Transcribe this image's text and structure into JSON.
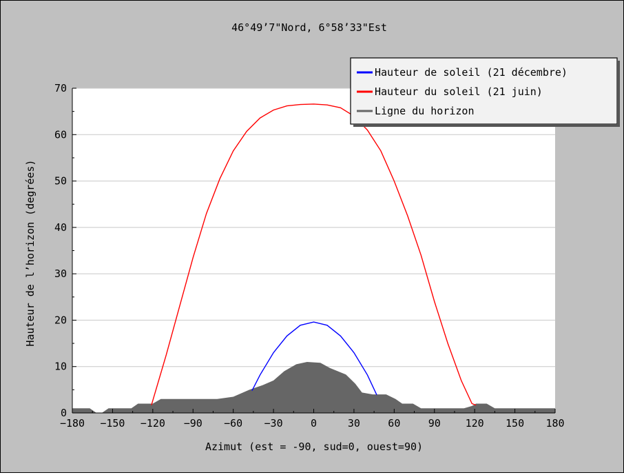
{
  "chart_data": {
    "type": "area",
    "title": "46°49’7\"Nord, 6°58’33\"Est",
    "xlabel": "Azimut (est = -90, sud=0, ouest=90)",
    "ylabel": "Hauteur de l’horizon (degrées)",
    "xlim": [
      -180,
      180
    ],
    "ylim": [
      0,
      70
    ],
    "x_ticks": [
      -180,
      -150,
      -120,
      -90,
      -60,
      -30,
      0,
      30,
      60,
      90,
      120,
      150,
      180
    ],
    "x_tick_labels": [
      "−180",
      "−150",
      "−120",
      "−90",
      "−60",
      "−30",
      "0",
      "30",
      "60",
      "90",
      "120",
      "150",
      "180"
    ],
    "y_ticks": [
      0,
      10,
      20,
      30,
      40,
      50,
      60,
      70
    ],
    "grid": "horizontal",
    "legend_position": "top-right",
    "series": [
      {
        "name": "Hauteur de soleil (21 décembre)",
        "color": "#0000ff",
        "type": "line",
        "points": [
          [
            -46,
            4.8
          ],
          [
            -40,
            8.2
          ],
          [
            -30,
            13.0
          ],
          [
            -20,
            16.6
          ],
          [
            -10,
            18.9
          ],
          [
            0,
            19.6
          ],
          [
            10,
            18.9
          ],
          [
            20,
            16.6
          ],
          [
            30,
            13.0
          ],
          [
            40,
            8.2
          ],
          [
            47,
            3.9
          ]
        ]
      },
      {
        "name": "Hauteur du soleil (21 juin)",
        "color": "#ff0000",
        "type": "line",
        "points": [
          [
            -121,
            1.7
          ],
          [
            -110,
            12.5
          ],
          [
            -100,
            23.0
          ],
          [
            -90,
            33.5
          ],
          [
            -80,
            43.0
          ],
          [
            -70,
            50.5
          ],
          [
            -60,
            56.5
          ],
          [
            -50,
            60.7
          ],
          [
            -40,
            63.6
          ],
          [
            -30,
            65.3
          ],
          [
            -20,
            66.2
          ],
          [
            -10,
            66.5
          ],
          [
            0,
            66.6
          ],
          [
            10,
            66.4
          ],
          [
            20,
            65.8
          ],
          [
            30,
            64.0
          ],
          [
            40,
            61.0
          ],
          [
            50,
            56.5
          ],
          [
            60,
            50.0
          ],
          [
            70,
            42.5
          ],
          [
            80,
            34.0
          ],
          [
            90,
            24.0
          ],
          [
            100,
            15.0
          ],
          [
            110,
            7.0
          ],
          [
            118,
            2.0
          ],
          [
            121,
            1.7
          ]
        ]
      },
      {
        "name": "Ligne du horizon",
        "color": "#666666",
        "type": "area",
        "points": [
          [
            -180,
            1
          ],
          [
            -167,
            1
          ],
          [
            -162,
            0
          ],
          [
            -158,
            0
          ],
          [
            -153,
            1
          ],
          [
            -136,
            1
          ],
          [
            -131,
            2
          ],
          [
            -120,
            2
          ],
          [
            -114,
            3
          ],
          [
            -72,
            3
          ],
          [
            -60,
            3.5
          ],
          [
            -48,
            5
          ],
          [
            -38,
            6
          ],
          [
            -30,
            7
          ],
          [
            -22,
            9
          ],
          [
            -13,
            10.5
          ],
          [
            -5,
            11
          ],
          [
            5,
            10.8
          ],
          [
            12,
            9.7
          ],
          [
            24,
            8.3
          ],
          [
            31,
            6.3
          ],
          [
            36,
            4.4
          ],
          [
            44,
            4
          ],
          [
            54,
            4
          ],
          [
            61,
            3
          ],
          [
            66,
            2
          ],
          [
            74,
            2
          ],
          [
            80,
            1
          ],
          [
            112,
            1
          ],
          [
            118,
            1.5
          ],
          [
            121,
            2
          ],
          [
            129,
            2
          ],
          [
            135,
            1
          ],
          [
            180,
            1
          ]
        ]
      }
    ]
  }
}
